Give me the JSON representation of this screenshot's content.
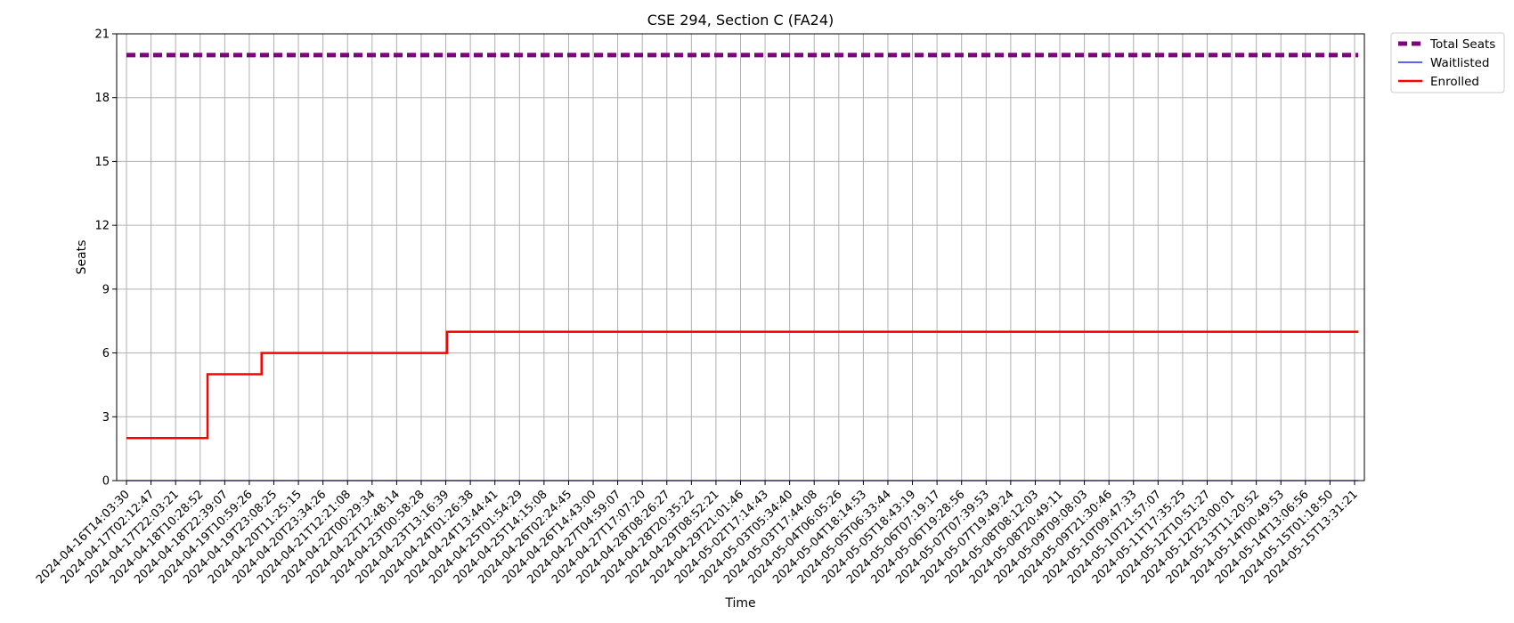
{
  "chart_data": {
    "type": "line",
    "title": "CSE 294, Section C (FA24)",
    "xlabel": "Time",
    "ylabel": "Seats",
    "ylim": [
      0,
      21
    ],
    "yticks": [
      0,
      3,
      6,
      9,
      12,
      15,
      18,
      21
    ],
    "grid": true,
    "legend_position": "outside-top-right",
    "categories": [
      "2024-04-16T14:03:30",
      "2024-04-17T02:12:47",
      "2024-04-17T22:03:21",
      "2024-04-18T10:28:52",
      "2024-04-18T22:39:07",
      "2024-04-19T10:59:26",
      "2024-04-19T23:08:25",
      "2024-04-20T11:25:15",
      "2024-04-20T23:34:26",
      "2024-04-21T12:21:08",
      "2024-04-22T00:29:34",
      "2024-04-22T12:48:14",
      "2024-04-23T00:58:28",
      "2024-04-23T13:16:39",
      "2024-04-24T01:26:38",
      "2024-04-24T13:44:41",
      "2024-04-25T01:54:29",
      "2024-04-25T14:15:08",
      "2024-04-26T02:24:45",
      "2024-04-26T14:43:00",
      "2024-04-27T04:59:07",
      "2024-04-27T17:07:20",
      "2024-04-28T08:26:27",
      "2024-04-28T20:35:22",
      "2024-04-29T08:52:21",
      "2024-04-29T21:01:46",
      "2024-05-02T17:14:43",
      "2024-05-03T05:34:40",
      "2024-05-03T17:44:08",
      "2024-05-04T06:05:26",
      "2024-05-04T18:14:53",
      "2024-05-05T06:33:44",
      "2024-05-05T18:43:19",
      "2024-05-06T07:19:17",
      "2024-05-06T19:28:56",
      "2024-05-07T07:39:53",
      "2024-05-07T19:49:24",
      "2024-05-08T08:12:03",
      "2024-05-08T20:49:11",
      "2024-05-09T09:08:03",
      "2024-05-09T21:30:46",
      "2024-05-10T09:47:33",
      "2024-05-10T21:57:07",
      "2024-05-11T17:35:25",
      "2024-05-12T10:51:27",
      "2024-05-12T23:00:01",
      "2024-05-13T11:20:52",
      "2024-05-14T00:49:53",
      "2024-05-14T13:06:56",
      "2024-05-15T01:18:50",
      "2024-05-15T13:31:21"
    ],
    "series": [
      {
        "name": "Total Seats",
        "color": "#800080",
        "style": "dashed",
        "steps": [
          {
            "x": 0,
            "y": 20
          },
          {
            "x": 50.15,
            "y": 20
          }
        ]
      },
      {
        "name": "Waitlisted",
        "color": "#0000ff",
        "style": "solid",
        "steps": [
          {
            "x": 0,
            "y": 0
          },
          {
            "x": 50.15,
            "y": 0
          }
        ]
      },
      {
        "name": "Enrolled",
        "color": "#ff0000",
        "style": "solid",
        "steps": [
          {
            "x": 0,
            "y": 2
          },
          {
            "x": 3.3,
            "y": 5
          },
          {
            "x": 5.5,
            "y": 6
          },
          {
            "x": 13.05,
            "y": 7
          },
          {
            "x": 50.15,
            "y": 7
          }
        ]
      }
    ]
  }
}
